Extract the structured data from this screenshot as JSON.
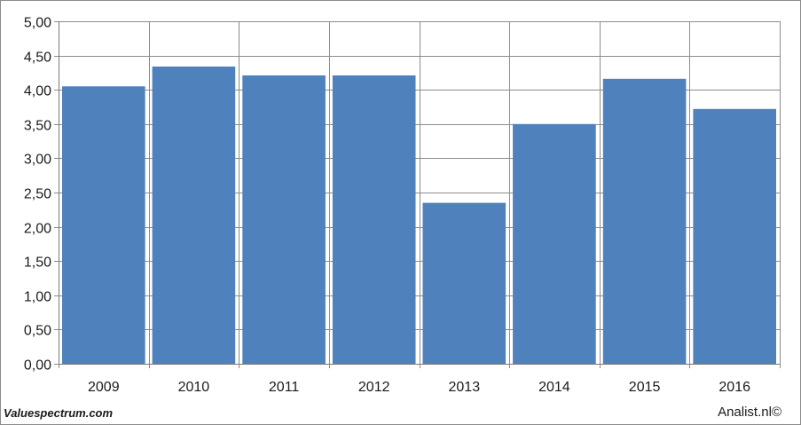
{
  "chart_data": {
    "type": "bar",
    "categories": [
      "2009",
      "2010",
      "2011",
      "2012",
      "2013",
      "2014",
      "2015",
      "2016"
    ],
    "values": [
      4.05,
      4.34,
      4.21,
      4.21,
      2.35,
      3.5,
      4.16,
      3.72
    ],
    "ylim": [
      0,
      5
    ],
    "yticks": [
      "0,00",
      "0,50",
      "1,00",
      "1,50",
      "2,00",
      "2,50",
      "3,00",
      "3,50",
      "4,00",
      "4,50",
      "5,00"
    ],
    "ytick_values": [
      0,
      0.5,
      1,
      1.5,
      2,
      2.5,
      3,
      3.5,
      4,
      4.5,
      5
    ],
    "grid": true,
    "bar_color": "#4f81bd",
    "grid_color": "#8c8c8c"
  },
  "footer": {
    "source_left": "Valuespectrum.com",
    "source_right": "Analist.nl©"
  }
}
